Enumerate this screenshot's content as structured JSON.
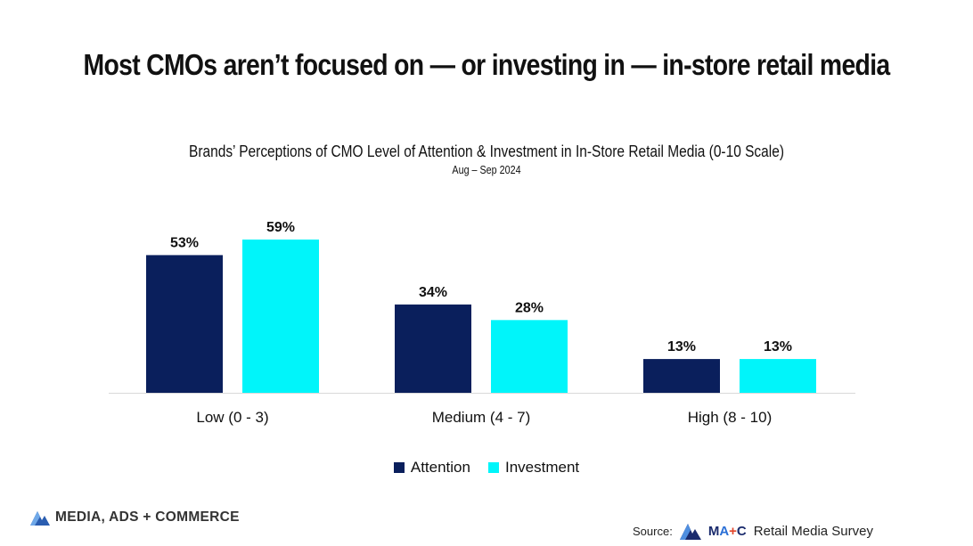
{
  "headline": "Most CMOs aren’t focused on — or investing in — in-store retail media",
  "chart_data": {
    "type": "bar",
    "title": "Brands’ Perceptions of CMO Level of Attention & Investment in In-Store Retail Media (0-10 Scale)",
    "subtitle": "Aug – Sep 2024",
    "categories": [
      "Low (0 - 3)",
      "Medium (4 - 7)",
      "High (8 - 10)"
    ],
    "series": [
      {
        "name": "Attention",
        "values": [
          53,
          34,
          13
        ],
        "labels": [
          "53%",
          "34%",
          "13%"
        ],
        "color": "#0a1f5c"
      },
      {
        "name": "Investment",
        "values": [
          59,
          28,
          13
        ],
        "labels": [
          "59%",
          "28%",
          "13%"
        ],
        "color": "#00f5fa"
      }
    ],
    "ylim": [
      0,
      60
    ],
    "grid": false,
    "legend_position": "bottom"
  },
  "footer": {
    "brand": "MEDIA, ADS + COMMERCE",
    "source_label": "Source:",
    "source_logo": {
      "m": "M",
      "a": "A",
      "plus": "+",
      "c": "C"
    },
    "source_name": "Retail Media Survey"
  },
  "icons": {
    "brand_logo": "mountain-peaks-icon",
    "source_logo": "mountain-peaks-icon"
  }
}
